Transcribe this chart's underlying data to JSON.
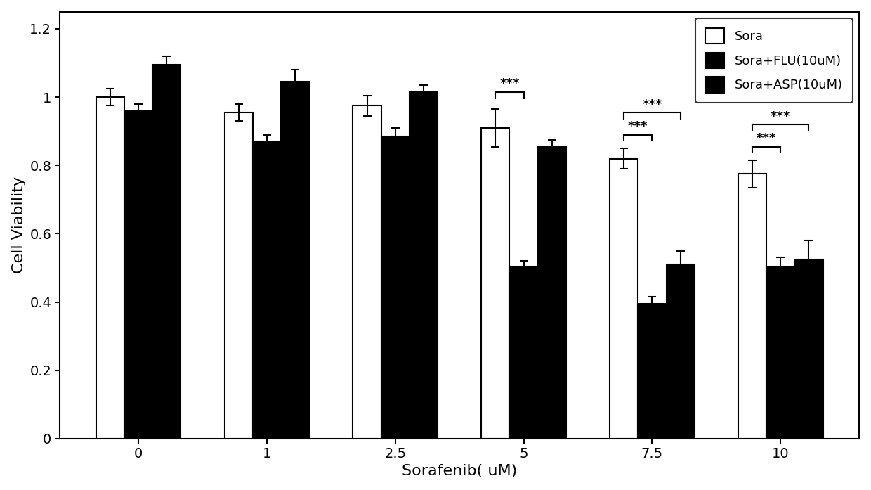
{
  "categories": [
    "0",
    "1",
    "2.5",
    "5",
    "7.5",
    "10"
  ],
  "sora_values": [
    1.0,
    0.955,
    0.975,
    0.91,
    0.82,
    0.775
  ],
  "sora_errors": [
    0.025,
    0.025,
    0.03,
    0.055,
    0.03,
    0.04
  ],
  "flu_values": [
    0.96,
    0.87,
    0.885,
    0.505,
    0.395,
    0.505
  ],
  "flu_errors": [
    0.02,
    0.02,
    0.025,
    0.015,
    0.02,
    0.025
  ],
  "asp_values": [
    1.095,
    1.045,
    1.015,
    0.855,
    0.51,
    0.525
  ],
  "asp_errors": [
    0.025,
    0.035,
    0.02,
    0.02,
    0.04,
    0.055
  ],
  "xlabel": "Sorafenib( uM)",
  "ylabel": "Cell Viability",
  "ylim": [
    0,
    1.25
  ],
  "yticks": [
    0,
    0.2,
    0.4,
    0.6,
    0.8,
    1.0,
    1.2
  ],
  "legend_labels": [
    "Sora",
    "Sora+FLU(10uM)",
    "Sora+ASP(10uM)"
  ],
  "bar_width": 0.22
}
